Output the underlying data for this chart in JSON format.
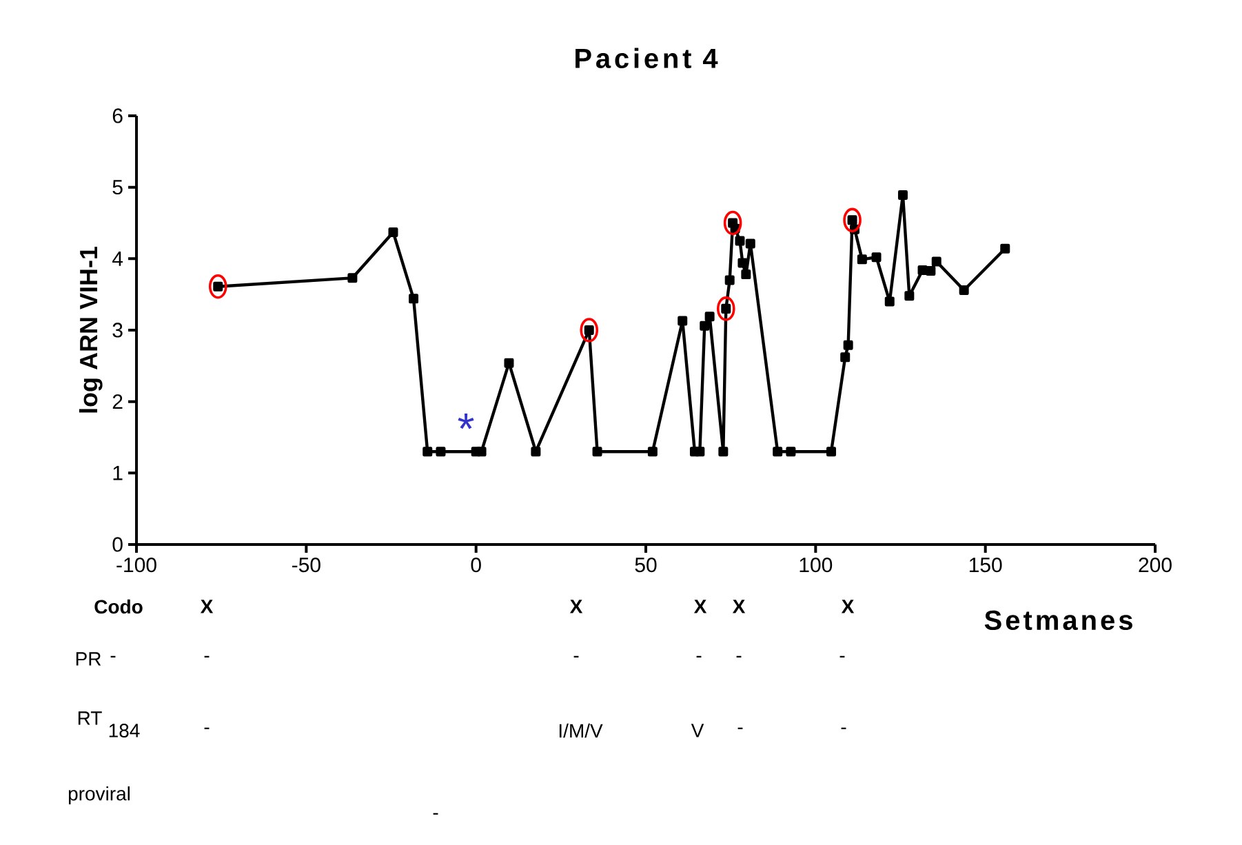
{
  "chart_data": {
    "type": "line",
    "title": "Pacient 4",
    "xlabel": "Setmanes",
    "ylabel": "log ARN VIH-1",
    "xlim": [
      -100,
      200
    ],
    "ylim": [
      0,
      6
    ],
    "xticks": [
      -100,
      -50,
      0,
      50,
      100,
      150,
      200
    ],
    "yticks": [
      0,
      1,
      2,
      3,
      4,
      5,
      6
    ],
    "series": [
      {
        "color": "#000000",
        "marker": "square",
        "line_style": "solid",
        "x": [
          -76,
          -36.4,
          -24.4,
          -18.4,
          -14.3,
          -10.4,
          0,
          1.6,
          9.7,
          17.6,
          33.3,
          35.7,
          52,
          60.8,
          64.4,
          65.9,
          67.3,
          68.8,
          72.8,
          73.6,
          74.7,
          75.6,
          76.3,
          77.7,
          78.5,
          79.5,
          80.8,
          88.8,
          92.7,
          104.6,
          108.7,
          109.6,
          110.8,
          111.5,
          113.7,
          117.9,
          121.8,
          125.7,
          127.6,
          131.5,
          133.9,
          135.6,
          143.7,
          155.8
        ],
        "values": [
          3.61,
          3.73,
          4.37,
          3.44,
          1.3,
          1.3,
          1.3,
          1.3,
          2.54,
          1.3,
          3.0,
          1.3,
          1.3,
          3.13,
          1.3,
          1.3,
          3.06,
          3.19,
          1.3,
          3.3,
          3.7,
          4.5,
          4.42,
          4.25,
          3.94,
          3.78,
          4.21,
          1.3,
          1.3,
          1.3,
          2.62,
          2.79,
          4.54,
          4.41,
          3.99,
          4.02,
          3.4,
          4.89,
          3.48,
          3.84,
          3.83,
          3.96,
          3.56,
          4.14
        ]
      },
      {
        "type": "scatter",
        "color": "#ff0000",
        "marker": "circle",
        "x": [
          -76,
          33.3,
          73.6,
          75.6,
          110.8
        ],
        "values": [
          3.61,
          3.0,
          3.3,
          4.5,
          4.54
        ]
      }
    ],
    "annotations": [
      "Codo",
      "X",
      "X",
      "X",
      "X",
      "X",
      "PR",
      "-",
      "-",
      "-",
      "-",
      "-",
      "-",
      "RT",
      "184",
      "-",
      "I/M/V",
      "V",
      "-",
      "-",
      "proviral",
      "-",
      "*"
    ]
  }
}
